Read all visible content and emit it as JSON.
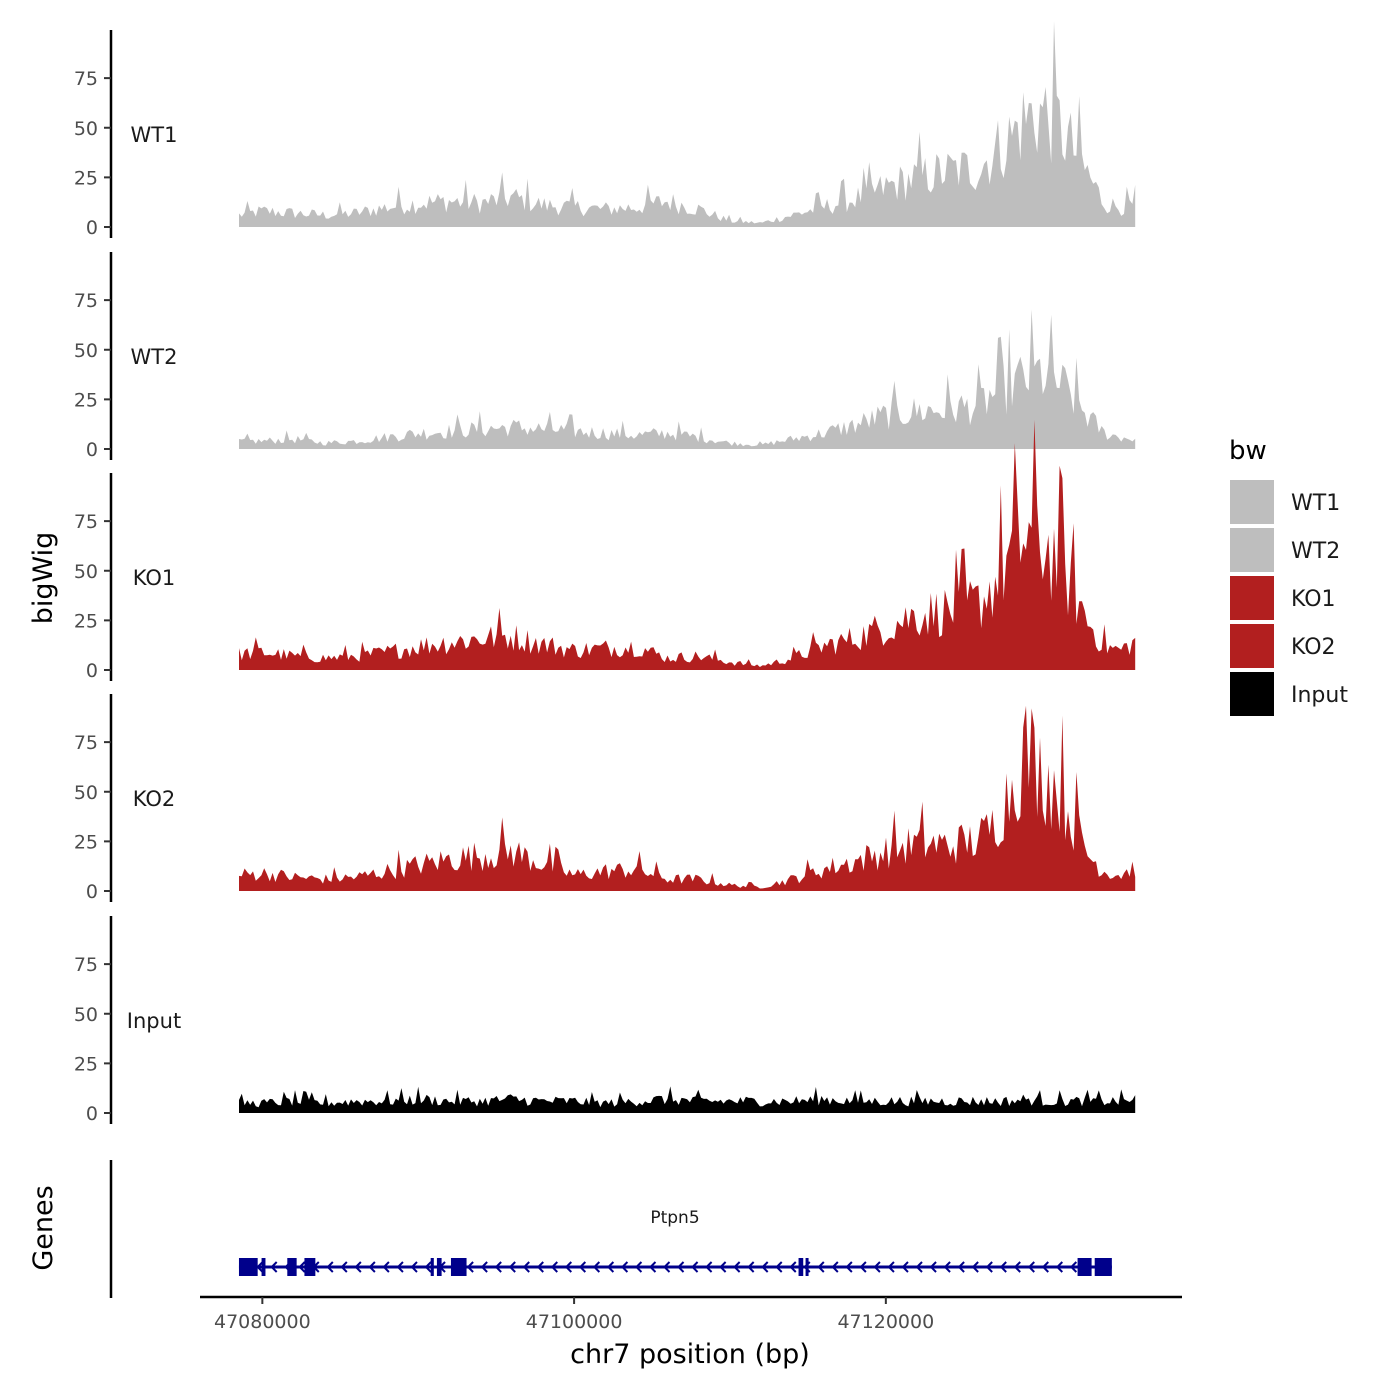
{
  "chart_data": {
    "type": "area",
    "title": "",
    "ylabel": "bigWig",
    "xlabel": "chr7 position (bp)",
    "genes_label": "Genes",
    "xlim": [
      47076000,
      47139000
    ],
    "data_xrange": [
      47078500,
      47136000
    ],
    "ylim": [
      0,
      100
    ],
    "y_ticks": [
      "0",
      "25",
      "50",
      "75"
    ],
    "y_tick_values": [
      0,
      25,
      50,
      75
    ],
    "x_ticks": [
      "47080000",
      "47100000",
      "47120000"
    ],
    "x_tick_values": [
      47080000,
      47100000,
      47120000
    ],
    "legend": {
      "title": "bw",
      "position": "right",
      "entries": [
        {
          "label": "WT1",
          "color": "#bebebe"
        },
        {
          "label": "WT2",
          "color": "#bebebe"
        },
        {
          "label": "KO1",
          "color": "#b21f1f"
        },
        {
          "label": "KO2",
          "color": "#b21f1f"
        },
        {
          "label": "Input",
          "color": "#000000"
        }
      ]
    },
    "series": [
      {
        "name": "WT1",
        "color": "#bebebe",
        "x": [
          47078500,
          47080000,
          47082000,
          47084000,
          47086000,
          47088000,
          47090000,
          47092000,
          47094000,
          47096000,
          47098000,
          47100000,
          47102000,
          47104000,
          47106000,
          47108000,
          47110000,
          47112000,
          47114000,
          47116000,
          47118000,
          47120000,
          47122000,
          47124000,
          47126000,
          47127000,
          47128000,
          47129000,
          47130000,
          47131000,
          47132000,
          47133000,
          47134000,
          47135000,
          47136000
        ],
        "values": [
          6,
          8,
          7,
          6,
          7,
          10,
          12,
          13,
          12,
          15,
          11,
          10,
          9,
          10,
          13,
          9,
          3,
          2,
          6,
          10,
          14,
          20,
          25,
          28,
          30,
          38,
          45,
          55,
          58,
          52,
          40,
          26,
          12,
          10,
          11
        ]
      },
      {
        "name": "WT2",
        "color": "#bebebe",
        "x": [
          47078500,
          47080000,
          47082000,
          47084000,
          47086000,
          47088000,
          47090000,
          47092000,
          47094000,
          47096000,
          47098000,
          47100000,
          47102000,
          47104000,
          47106000,
          47108000,
          47110000,
          47112000,
          47114000,
          47116000,
          47118000,
          47120000,
          47122000,
          47124000,
          47126000,
          47127000,
          47128000,
          47129000,
          47130000,
          47131000,
          47132000,
          47133000,
          47134000,
          47135000,
          47136000
        ],
        "values": [
          4,
          4,
          5,
          3,
          4,
          6,
          8,
          9,
          10,
          11,
          10,
          9,
          8,
          7,
          8,
          6,
          3,
          2,
          5,
          8,
          12,
          17,
          19,
          20,
          22,
          28,
          32,
          36,
          38,
          34,
          26,
          16,
          8,
          6,
          5
        ]
      },
      {
        "name": "KO1",
        "color": "#b21f1f",
        "x": [
          47078500,
          47080000,
          47082000,
          47084000,
          47086000,
          47088000,
          47090000,
          47092000,
          47094000,
          47096000,
          47098000,
          47100000,
          47102000,
          47104000,
          47106000,
          47108000,
          47110000,
          47112000,
          47114000,
          47116000,
          47118000,
          47120000,
          47122000,
          47124000,
          47126000,
          47127000,
          47128000,
          47129000,
          47130000,
          47131000,
          47132000,
          47133000,
          47134000,
          47135000,
          47136000
        ],
        "values": [
          8,
          9,
          7,
          6,
          7,
          9,
          12,
          14,
          16,
          17,
          13,
          10,
          11,
          12,
          6,
          7,
          4,
          2,
          6,
          12,
          16,
          22,
          28,
          30,
          34,
          44,
          58,
          68,
          64,
          56,
          40,
          24,
          12,
          10,
          14
        ]
      },
      {
        "name": "KO2",
        "color": "#b21f1f",
        "x": [
          47078500,
          47080000,
          47082000,
          47084000,
          47086000,
          47088000,
          47090000,
          47092000,
          47094000,
          47096000,
          47098000,
          47100000,
          47102000,
          47104000,
          47106000,
          47108000,
          47110000,
          47112000,
          47114000,
          47116000,
          47118000,
          47120000,
          47122000,
          47124000,
          47126000,
          47127000,
          47128000,
          47129000,
          47130000,
          47131000,
          47132000,
          47133000,
          47134000,
          47135000,
          47136000
        ],
        "values": [
          8,
          9,
          7,
          6,
          7,
          10,
          13,
          16,
          18,
          20,
          14,
          8,
          10,
          11,
          6,
          6,
          3,
          2,
          6,
          11,
          15,
          20,
          24,
          23,
          26,
          34,
          52,
          72,
          60,
          52,
          36,
          18,
          10,
          8,
          12
        ]
      },
      {
        "name": "Input",
        "color": "#000000",
        "x": [
          47078500,
          47080000,
          47082000,
          47084000,
          47086000,
          47088000,
          47090000,
          47092000,
          47094000,
          47096000,
          47098000,
          47100000,
          47102000,
          47104000,
          47106000,
          47108000,
          47110000,
          47112000,
          47114000,
          47116000,
          47118000,
          47120000,
          47122000,
          47124000,
          47126000,
          47127000,
          47128000,
          47129000,
          47130000,
          47131000,
          47132000,
          47133000,
          47134000,
          47135000,
          47136000
        ],
        "values": [
          5,
          5,
          6,
          5,
          6,
          6,
          7,
          6,
          6,
          7,
          6,
          6,
          5,
          6,
          7,
          6,
          6,
          6,
          6,
          7,
          6,
          6,
          6,
          6,
          6,
          6,
          6,
          7,
          6,
          6,
          6,
          6,
          6,
          6,
          7
        ]
      }
    ],
    "gene": {
      "name": "Ptpn5",
      "strand": "-",
      "start": 47078500,
      "end": 47134500,
      "exons": [
        [
          47078500,
          47079700
        ],
        [
          47079950,
          47080200
        ],
        [
          47081600,
          47082200
        ],
        [
          47082700,
          47083400
        ],
        [
          47090800,
          47091000
        ],
        [
          47091200,
          47091500
        ],
        [
          47092100,
          47093100
        ],
        [
          47114400,
          47114700
        ],
        [
          47114850,
          47115000
        ],
        [
          47132300,
          47133200
        ],
        [
          47133400,
          47134500
        ]
      ],
      "color": "#00008b"
    }
  }
}
